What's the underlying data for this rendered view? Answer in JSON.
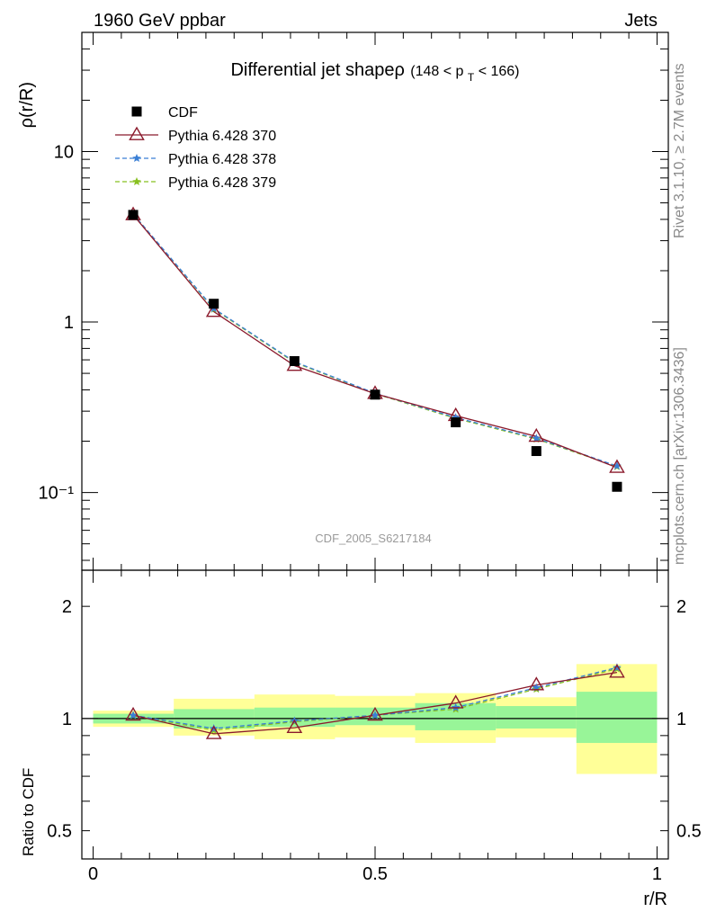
{
  "header": {
    "left": "1960 GeV ppbar",
    "right": "Jets"
  },
  "side_labels": {
    "top": "Rivet 3.1.10, ≥ 2.7M events",
    "bottom": "mcplots.cern.ch [arXiv:1306.3436]"
  },
  "chart_data": [
    {
      "type": "line",
      "title_main": "Differential jet shapeρ",
      "title_range": "(148 < p",
      "title_sub": "T",
      "title_end": " < 166)",
      "ylabel": "ρ(r/R)",
      "yscale": "log",
      "ylim": [
        0.035,
        50
      ],
      "xlim": [
        -0.02,
        1.02
      ],
      "y_ticks": [
        {
          "value": 10,
          "label": "10"
        },
        {
          "value": 1,
          "label": "1"
        },
        {
          "value": 0.1,
          "label": "10⁻¹"
        }
      ],
      "watermark": "CDF_2005_S6217184",
      "legend_position": "top-left",
      "x": [
        0.071,
        0.214,
        0.357,
        0.5,
        0.643,
        0.786,
        0.929
      ],
      "series": [
        {
          "name": "CDF",
          "style": "data",
          "color": "#000000",
          "values": [
            4.25,
            1.28,
            0.59,
            0.375,
            0.258,
            0.175,
            0.108
          ]
        },
        {
          "name": "Pythia 6.428 370",
          "style": "solid",
          "marker": "triangle",
          "color": "#8b1a2c",
          "values": [
            4.25,
            1.15,
            0.555,
            0.38,
            0.282,
            0.213,
            0.14
          ]
        },
        {
          "name": "Pythia 6.428 378",
          "style": "dashed",
          "marker": "star",
          "color": "#3a7fd5",
          "values": [
            4.3,
            1.2,
            0.585,
            0.382,
            0.275,
            0.208,
            0.143
          ]
        },
        {
          "name": "Pythia 6.428 379",
          "style": "dashed",
          "marker": "star",
          "color": "#88c020",
          "values": [
            4.3,
            1.19,
            0.58,
            0.38,
            0.272,
            0.206,
            0.142
          ]
        }
      ]
    },
    {
      "type": "line",
      "ylabel": "Ratio to CDF",
      "xlabel": "r/R",
      "yscale": "log",
      "ylim": [
        0.42,
        2.5
      ],
      "xlim": [
        -0.02,
        1.02
      ],
      "y_ticks": [
        {
          "value": 2,
          "label": "2"
        },
        {
          "value": 1,
          "label": "1"
        },
        {
          "value": 0.5,
          "label": "0.5"
        }
      ],
      "x_ticks": [
        {
          "value": 0,
          "label": "0"
        },
        {
          "value": 0.5,
          "label": "0.5"
        },
        {
          "value": 1,
          "label": "1"
        }
      ],
      "bands": [
        {
          "x0": 0.0,
          "x1": 0.143,
          "inner": [
            0.97,
            1.03
          ],
          "outer": [
            0.95,
            1.05
          ]
        },
        {
          "x0": 0.143,
          "x1": 0.286,
          "inner": [
            0.94,
            1.06
          ],
          "outer": [
            0.9,
            1.13
          ]
        },
        {
          "x0": 0.286,
          "x1": 0.429,
          "inner": [
            0.95,
            1.07
          ],
          "outer": [
            0.88,
            1.16
          ]
        },
        {
          "x0": 0.429,
          "x1": 0.571,
          "inner": [
            0.96,
            1.07
          ],
          "outer": [
            0.89,
            1.15
          ]
        },
        {
          "x0": 0.571,
          "x1": 0.714,
          "inner": [
            0.93,
            1.1
          ],
          "outer": [
            0.86,
            1.17
          ]
        },
        {
          "x0": 0.714,
          "x1": 0.857,
          "inner": [
            0.94,
            1.08
          ],
          "outer": [
            0.89,
            1.14
          ]
        },
        {
          "x0": 0.857,
          "x1": 1.0,
          "inner": [
            0.86,
            1.18
          ],
          "outer": [
            0.71,
            1.4
          ]
        }
      ],
      "band_colors": {
        "inner": "#98f598",
        "outer": "#ffff98"
      },
      "x": [
        0.071,
        0.214,
        0.357,
        0.5,
        0.643,
        0.786,
        0.929
      ],
      "series": [
        {
          "name": "Pythia 6.428 370",
          "style": "solid",
          "marker": "triangle",
          "color": "#8b1a2c",
          "values": [
            1.02,
            0.91,
            0.945,
            1.02,
            1.1,
            1.23,
            1.33
          ]
        },
        {
          "name": "Pythia 6.428 378",
          "style": "dashed",
          "marker": "star",
          "color": "#3a7fd5",
          "values": [
            1.02,
            0.94,
            0.985,
            1.02,
            1.07,
            1.21,
            1.37
          ]
        },
        {
          "name": "Pythia 6.428 379",
          "style": "dashed",
          "marker": "star",
          "color": "#88c020",
          "values": [
            1.02,
            0.93,
            0.98,
            1.02,
            1.06,
            1.2,
            1.36
          ]
        }
      ]
    }
  ]
}
